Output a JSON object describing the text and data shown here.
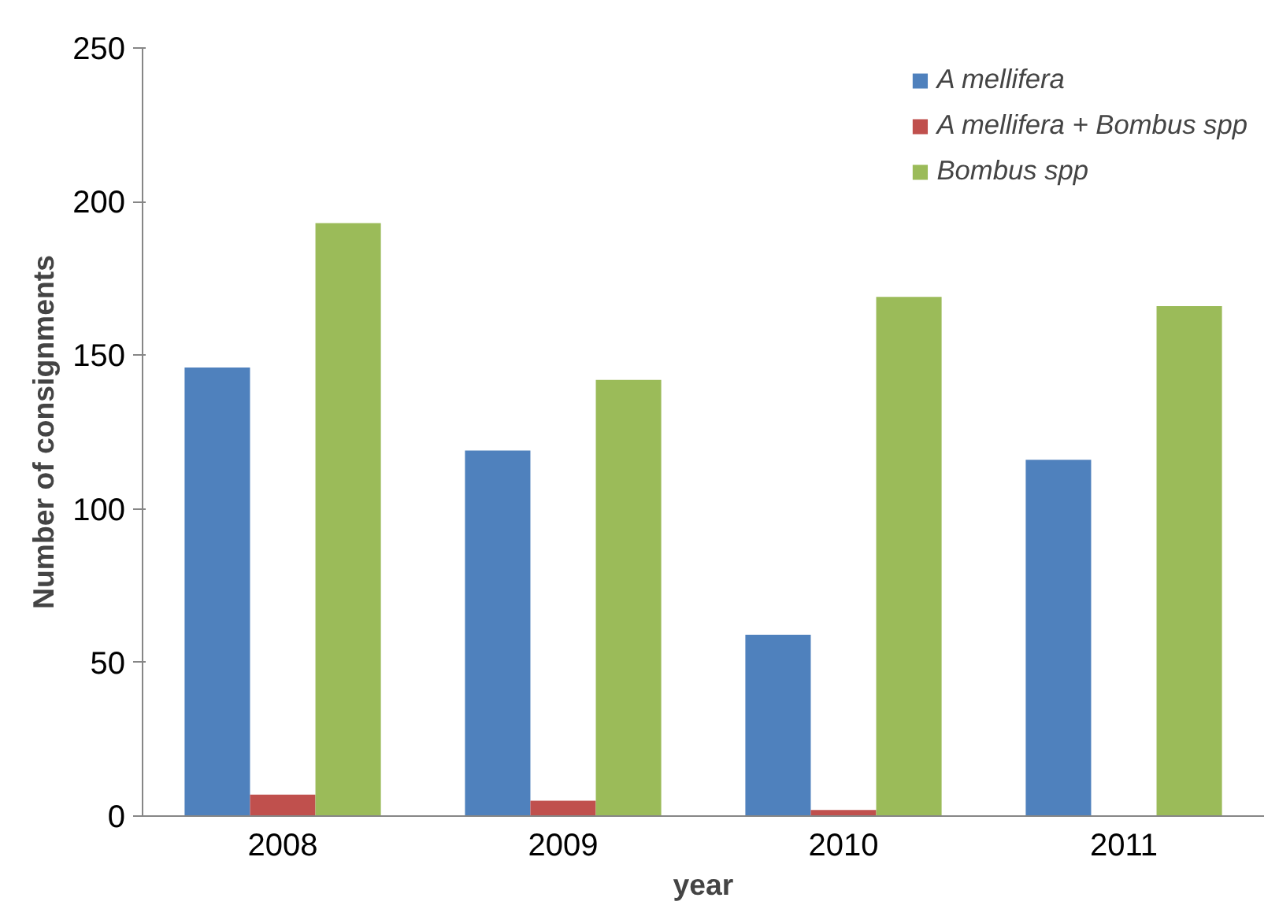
{
  "chart_data": {
    "type": "bar",
    "xlabel": "year",
    "ylabel": "Number of consignments",
    "categories": [
      "2008",
      "2009",
      "2010",
      "2011"
    ],
    "series": [
      {
        "name": "A mellifera",
        "color": "#4f81bd",
        "values": [
          146,
          119,
          59,
          116
        ]
      },
      {
        "name": "A mellifera + Bombus spp",
        "color": "#c0504d",
        "values": [
          7,
          5,
          2,
          0
        ]
      },
      {
        "name": "Bombus spp",
        "color": "#9bbb59",
        "values": [
          193,
          142,
          169,
          166
        ]
      }
    ],
    "ylim": [
      0,
      250
    ],
    "yticks": [
      0,
      50,
      100,
      150,
      200,
      250
    ],
    "grid": false,
    "legend": "top right"
  }
}
